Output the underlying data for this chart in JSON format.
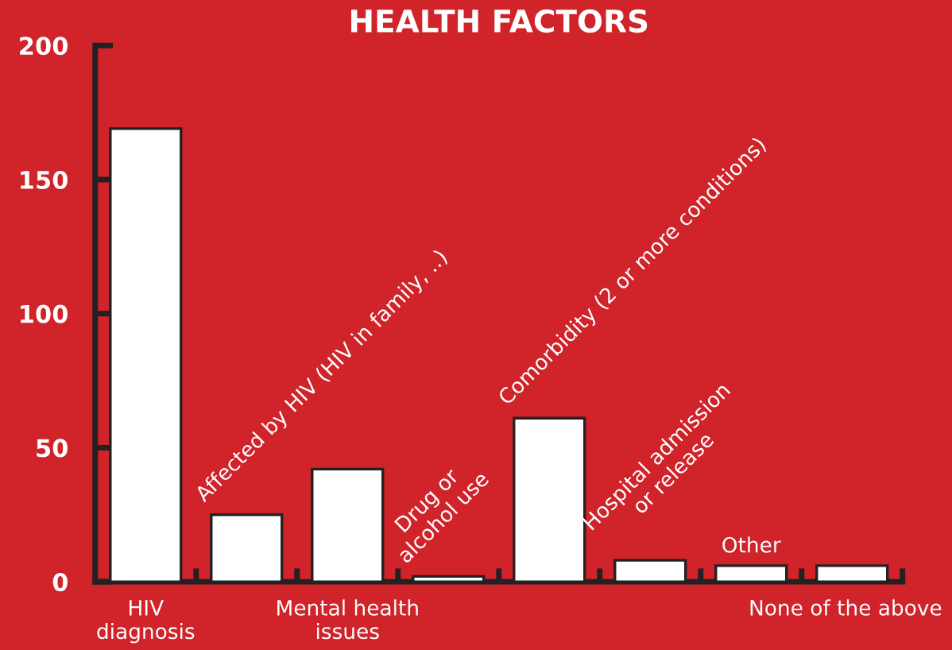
{
  "chart_data": {
    "type": "bar",
    "title": "HEALTH FACTORS",
    "categories": [
      "HIV\ndiagnosis",
      null,
      "Mental health\nissues",
      null,
      null,
      null,
      null,
      "None of the above"
    ],
    "annotations": [
      "Affected by HIV (HIV in family, ..)",
      "Drug or\nalcohol use",
      "Comorbidity (2 or more conditions)",
      "Hospital admission\nor release",
      "Other"
    ],
    "values": [
      169,
      25,
      42,
      2,
      61,
      8,
      6,
      6
    ],
    "color": "#ffffff",
    "ylim": [
      0,
      200
    ],
    "yticks": [
      0,
      50,
      100,
      150,
      200
    ],
    "grid": false
  }
}
